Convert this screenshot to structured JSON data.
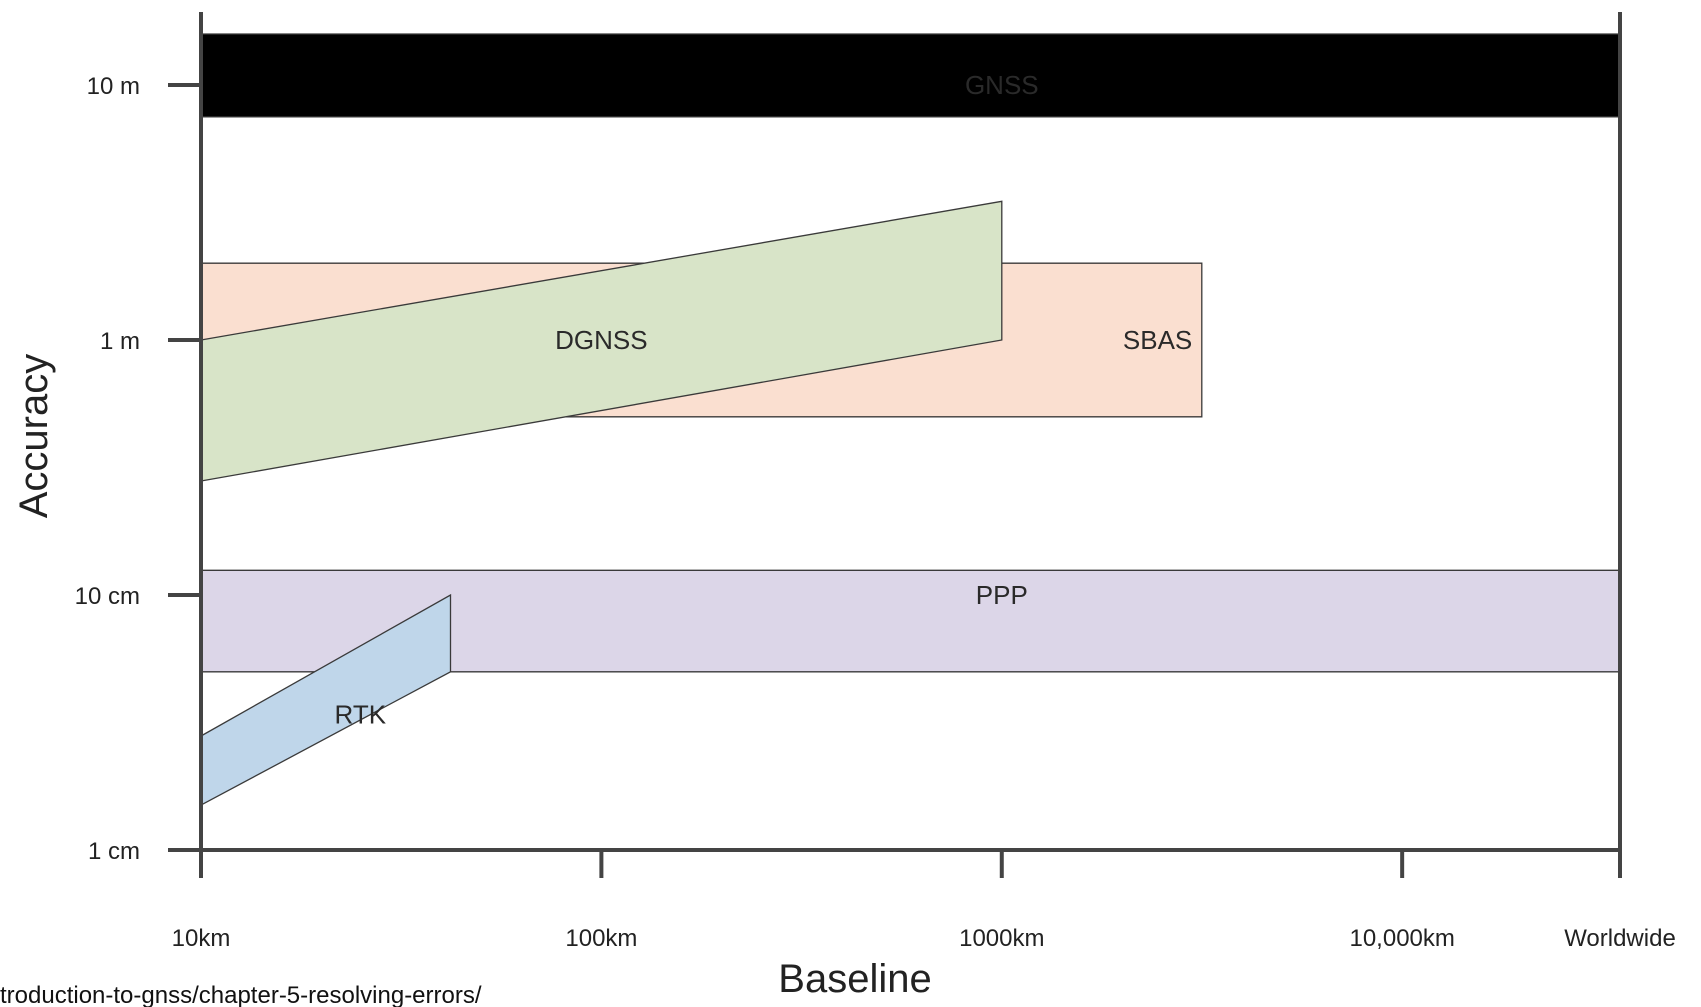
{
  "chart_data": {
    "type": "area",
    "title": "",
    "xlabel": "Baseline",
    "ylabel": "Accuracy",
    "x_scale": "log",
    "y_scale": "log",
    "x_ticks": [
      {
        "value": 10,
        "label": "10km"
      },
      {
        "value": 100,
        "label": "100km"
      },
      {
        "value": 1000,
        "label": "1000km"
      },
      {
        "value": 10000,
        "label": "10,000km"
      },
      {
        "value": 35000,
        "label": "Worldwide"
      }
    ],
    "y_ticks": [
      {
        "value": 0.01,
        "label": "1 cm"
      },
      {
        "value": 0.1,
        "label": "10 cm"
      },
      {
        "value": 1,
        "label": "1 m"
      },
      {
        "value": 10,
        "label": "10 m"
      }
    ],
    "xlim": [
      10,
      35000
    ],
    "ylim": [
      0.01,
      25
    ],
    "grid": false,
    "series": [
      {
        "name": "GNSS",
        "color": "#000000",
        "label_color": "#ffffff",
        "label_x": 1000,
        "label_y": 10,
        "polygon": [
          [
            10,
            20
          ],
          [
            35000,
            20
          ],
          [
            35000,
            7.5
          ],
          [
            10,
            7.5
          ]
        ]
      },
      {
        "name": "SBAS",
        "color": "#fadfd0",
        "label_color": "#2a2a2a",
        "label_x": 2450,
        "label_y": 1,
        "polygon": [
          [
            10,
            2
          ],
          [
            3160,
            2
          ],
          [
            3160,
            0.5
          ],
          [
            10,
            0.5
          ]
        ]
      },
      {
        "name": "DGNSS",
        "color": "#d8e4c8",
        "label_color": "#2a2a2a",
        "label_x": 100,
        "label_y": 1,
        "polygon": [
          [
            10,
            1
          ],
          [
            1000,
            3.5
          ],
          [
            1000,
            1
          ],
          [
            10,
            0.28
          ]
        ]
      },
      {
        "name": "PPP",
        "color": "#dcd6e8",
        "label_color": "#2a2a2a",
        "label_x": 1000,
        "label_y": 0.1,
        "polygon": [
          [
            10,
            0.125
          ],
          [
            35000,
            0.125
          ],
          [
            35000,
            0.05
          ],
          [
            10,
            0.05
          ]
        ]
      },
      {
        "name": "RTK",
        "color": "#bfd6ea",
        "label_color": "#2a2a2a",
        "label_x": 25,
        "label_y": 0.034,
        "polygon": [
          [
            10,
            0.028
          ],
          [
            42,
            0.1
          ],
          [
            42,
            0.05
          ],
          [
            10,
            0.015
          ]
        ]
      }
    ]
  },
  "footer": {
    "source_text": "troduction-to-gnss/chapter-5-resolving-errors/"
  }
}
